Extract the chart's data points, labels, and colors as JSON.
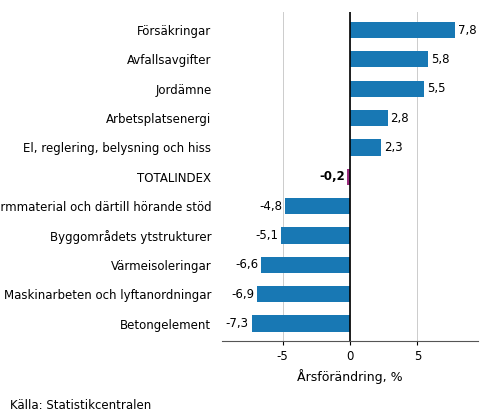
{
  "categories": [
    "Betongelement",
    "Maskinarbeten och lyftanordningar",
    "Värmeisoleringar",
    "Byggområdets ytstrukturer",
    "Formmaterial och därtill hörande stöd",
    "TOTALINDEX",
    "El, reglering, belysning och hiss",
    "Arbetsplatsenergi",
    "Jordämne",
    "Avfallsavgifter",
    "Försäkringar"
  ],
  "values": [
    -7.3,
    -6.9,
    -6.6,
    -5.1,
    -4.8,
    -0.2,
    2.3,
    2.8,
    5.5,
    5.8,
    7.8
  ],
  "bar_colors": [
    "#1878b4",
    "#1878b4",
    "#1878b4",
    "#1878b4",
    "#1878b4",
    "#9b2c7e",
    "#1878b4",
    "#1878b4",
    "#1878b4",
    "#1878b4",
    "#1878b4"
  ],
  "xlabel": "Årsförändring, %",
  "source": "Källa: Statistikcentralen",
  "xlim": [
    -9.5,
    9.5
  ],
  "xticks": [
    -5,
    0,
    5
  ],
  "value_labels": [
    "-7,3",
    "-6,9",
    "-6,6",
    "-5,1",
    "-4,8",
    "-0,2",
    "2,3",
    "2,8",
    "5,5",
    "5,8",
    "7,8"
  ],
  "bar_height": 0.55,
  "background_color": "#ffffff",
  "label_fontsize": 8.5,
  "tick_fontsize": 8.5,
  "source_fontsize": 8.5,
  "xlabel_fontsize": 9,
  "totalindex_bold": true
}
